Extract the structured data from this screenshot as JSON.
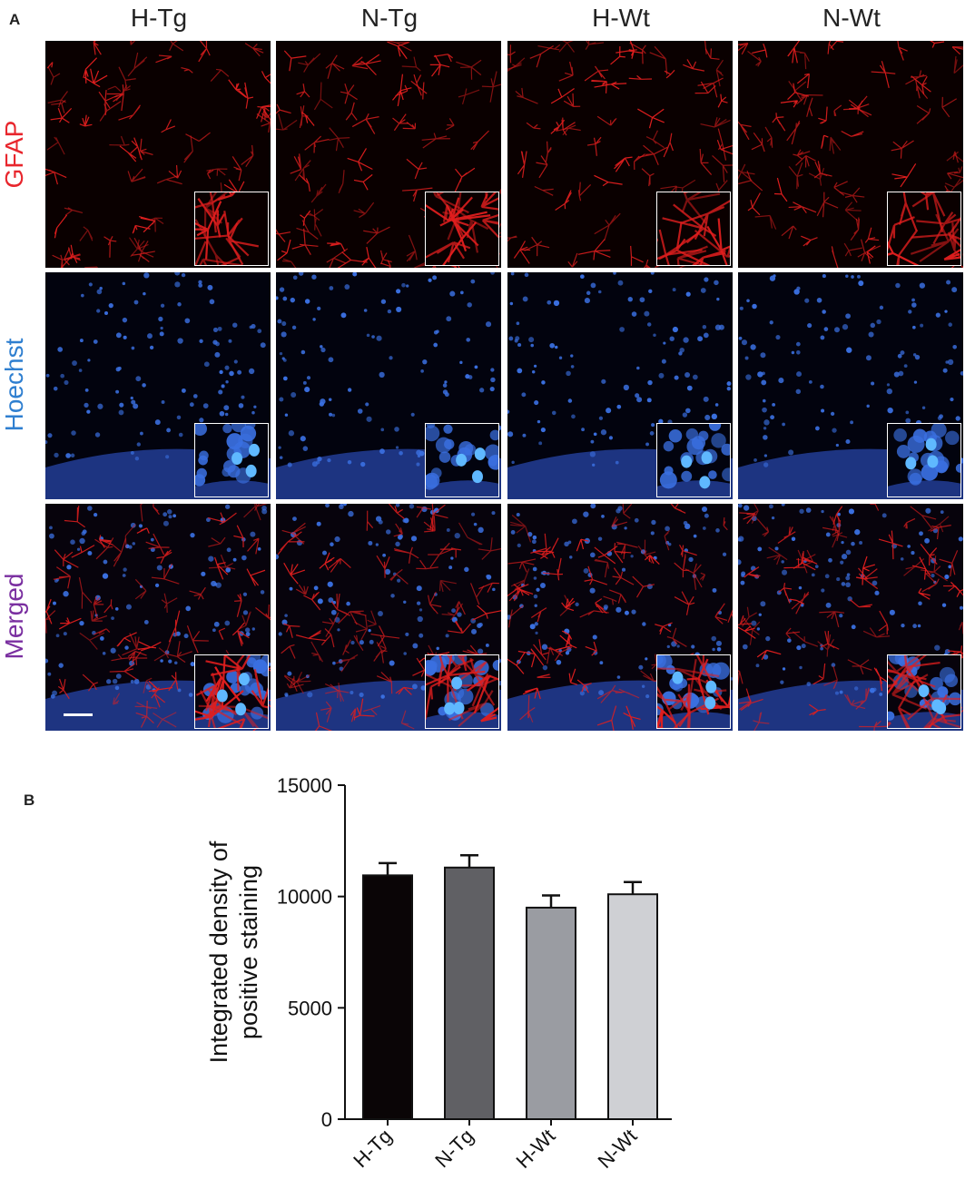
{
  "panel_a_label": "A",
  "panel_b_label": "B",
  "columns": [
    "H-Tg",
    "N-Tg",
    "H-Wt",
    "N-Wt"
  ],
  "rows": [
    {
      "label": "GFAP",
      "color": "#e8262d"
    },
    {
      "label": "Hoechst",
      "color": "#2f7fd0"
    },
    {
      "label": "Merged",
      "color": "#7a2fa0"
    }
  ],
  "colors": {
    "gfap_red": "#e01e1e",
    "hoechst_blue": "#3a6fe0",
    "bar_htg": "#0a0506",
    "bar_ntg": "#606064",
    "bar_hwt": "#9a9ca2",
    "bar_nwt": "#cfd0d4"
  },
  "chart_data": {
    "type": "bar",
    "categories": [
      "H-Tg",
      "N-Tg",
      "H-Wt",
      "N-Wt"
    ],
    "values": [
      10950,
      11300,
      9500,
      10100
    ],
    "errors": [
      550,
      550,
      550,
      550
    ],
    "ylabel": "Integrated density of positive staining",
    "ylim": [
      0,
      15000
    ],
    "yticks": [
      "0",
      "5000",
      "10000",
      "15000"
    ],
    "ytick_values": [
      0,
      5000,
      10000,
      15000
    ]
  }
}
